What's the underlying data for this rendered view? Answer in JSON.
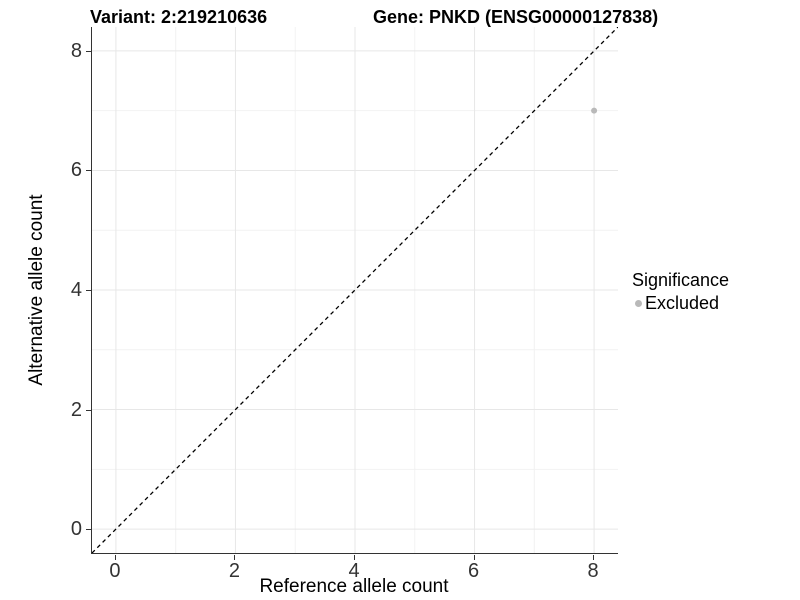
{
  "chart_data": {
    "type": "scatter",
    "title_left": "Variant: 2:219210636",
    "title_right": "Gene: PNKD (ENSG00000127838)",
    "xlabel": "Reference allele count",
    "ylabel": "Alternative allele count",
    "xlim": [
      -0.4,
      8.4
    ],
    "ylim": [
      -0.4,
      8.4
    ],
    "x_ticks": [
      0,
      2,
      4,
      6,
      8
    ],
    "y_ticks": [
      0,
      2,
      4,
      6,
      8
    ],
    "x_minor_ticks": [
      1,
      3,
      5,
      7
    ],
    "y_minor_ticks": [
      1,
      3,
      5,
      7
    ],
    "grid": true,
    "reference_line": {
      "slope": 1,
      "intercept": 0,
      "linetype": "dashed",
      "color": "#000000"
    },
    "series": [
      {
        "name": "Excluded",
        "color": "#b9b9b9",
        "points": [
          {
            "x": 8,
            "y": 7
          }
        ],
        "point_radius": 3
      }
    ],
    "legend": {
      "title": "Significance",
      "position": "right",
      "entries": [
        {
          "label": "Excluded",
          "color": "#b9b9b9"
        }
      ]
    },
    "colors": {
      "grid_major": "#e7e7e7",
      "grid_minor": "#f2f2f2",
      "axis_line": "#333333",
      "tick_text": "#333333",
      "background": "#ffffff"
    }
  }
}
